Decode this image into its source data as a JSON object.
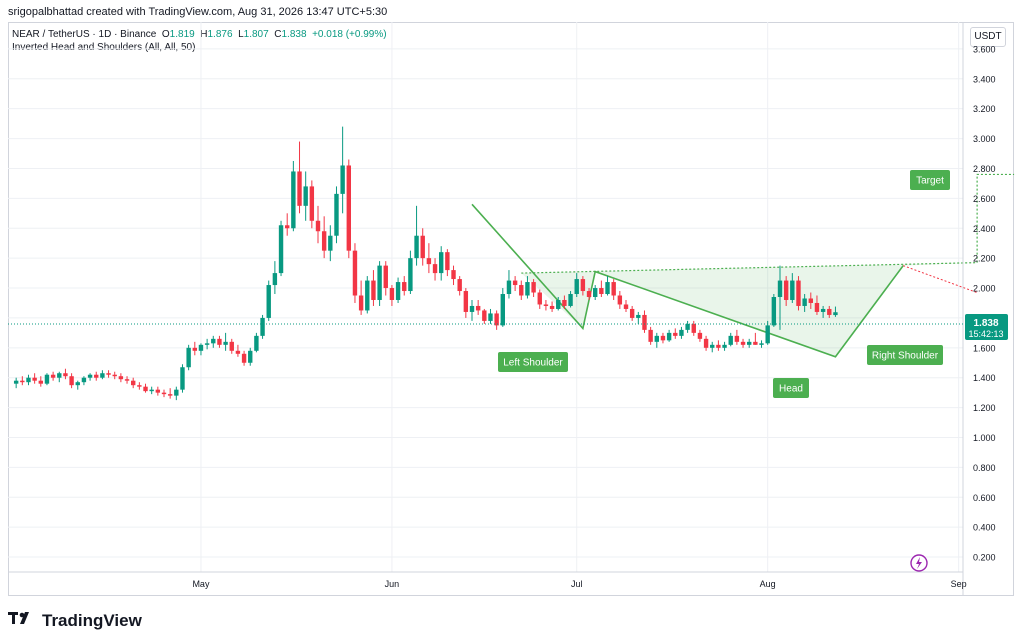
{
  "header": {
    "credit": "srigopalbhattad created with TradingView.com, Aug 31, 2026 13:47 UTC+5:30"
  },
  "legend": {
    "symbol": "NEAR / TetherUS · 1D · Binance",
    "o_label": "O",
    "o_value": "1.819",
    "h_label": "H",
    "h_value": "1.876",
    "l_label": "L",
    "l_value": "1.807",
    "c_label": "C",
    "c_value": "1.838",
    "change": "+0.018 (+0.99%)",
    "indicator": "Inverted Head and Shoulders (All, All, 50)"
  },
  "unit_button": "USDT",
  "price_tag": {
    "value": "1.838",
    "countdown": "15:42:13"
  },
  "footer": {
    "brand": "TradingView"
  },
  "colors": {
    "up": "#089981",
    "down": "#f23645",
    "pattern": "#4caf50",
    "label_bg": "#4caf50"
  },
  "chart_data": {
    "type": "candlestick",
    "y_ticks": [
      "3.600",
      "3.400",
      "3.200",
      "3.000",
      "2.800",
      "2.600",
      "2.400",
      "2.200",
      "2.000",
      "1.800",
      "1.600",
      "1.400",
      "1.200",
      "1.000",
      "0.800",
      "0.600",
      "0.400",
      "0.200"
    ],
    "ylim": [
      0.1,
      3.78
    ],
    "x_ticks": [
      {
        "label": "May",
        "day": 31
      },
      {
        "label": "Jun",
        "day": 62
      },
      {
        "label": "Jul",
        "day": 92
      },
      {
        "label": "Aug",
        "day": 123
      },
      {
        "label": "Sep",
        "day": 154
      }
    ],
    "xlim": [
      0,
      168
    ],
    "last_price": 1.838,
    "candles": [
      [
        1.36,
        1.4,
        1.33,
        1.38
      ],
      [
        1.38,
        1.41,
        1.35,
        1.37
      ],
      [
        1.37,
        1.42,
        1.35,
        1.4
      ],
      [
        1.4,
        1.43,
        1.36,
        1.38
      ],
      [
        1.38,
        1.41,
        1.34,
        1.36
      ],
      [
        1.36,
        1.43,
        1.35,
        1.42
      ],
      [
        1.42,
        1.44,
        1.38,
        1.4
      ],
      [
        1.4,
        1.44,
        1.37,
        1.43
      ],
      [
        1.43,
        1.46,
        1.39,
        1.41
      ],
      [
        1.41,
        1.43,
        1.33,
        1.35
      ],
      [
        1.35,
        1.38,
        1.32,
        1.37
      ],
      [
        1.37,
        1.41,
        1.35,
        1.4
      ],
      [
        1.4,
        1.43,
        1.38,
        1.42
      ],
      [
        1.42,
        1.44,
        1.38,
        1.4
      ],
      [
        1.4,
        1.45,
        1.39,
        1.43
      ],
      [
        1.43,
        1.45,
        1.4,
        1.42
      ],
      [
        1.42,
        1.44,
        1.39,
        1.41
      ],
      [
        1.41,
        1.43,
        1.37,
        1.39
      ],
      [
        1.39,
        1.41,
        1.36,
        1.38
      ],
      [
        1.38,
        1.4,
        1.33,
        1.35
      ],
      [
        1.35,
        1.37,
        1.32,
        1.34
      ],
      [
        1.34,
        1.36,
        1.3,
        1.31
      ],
      [
        1.31,
        1.34,
        1.29,
        1.32
      ],
      [
        1.32,
        1.34,
        1.28,
        1.3
      ],
      [
        1.3,
        1.32,
        1.27,
        1.29
      ],
      [
        1.29,
        1.33,
        1.26,
        1.28
      ],
      [
        1.28,
        1.34,
        1.25,
        1.32
      ],
      [
        1.32,
        1.49,
        1.3,
        1.47
      ],
      [
        1.47,
        1.62,
        1.45,
        1.6
      ],
      [
        1.6,
        1.64,
        1.55,
        1.58
      ],
      [
        1.58,
        1.63,
        1.55,
        1.62
      ],
      [
        1.62,
        1.66,
        1.59,
        1.63
      ],
      [
        1.63,
        1.68,
        1.6,
        1.66
      ],
      [
        1.66,
        1.68,
        1.6,
        1.62
      ],
      [
        1.62,
        1.7,
        1.58,
        1.64
      ],
      [
        1.64,
        1.66,
        1.56,
        1.58
      ],
      [
        1.58,
        1.62,
        1.54,
        1.56
      ],
      [
        1.56,
        1.58,
        1.48,
        1.5
      ],
      [
        1.5,
        1.6,
        1.48,
        1.58
      ],
      [
        1.58,
        1.7,
        1.57,
        1.68
      ],
      [
        1.68,
        1.82,
        1.66,
        1.8
      ],
      [
        1.8,
        2.05,
        1.78,
        2.02
      ],
      [
        2.02,
        2.18,
        1.96,
        2.1
      ],
      [
        2.1,
        2.45,
        2.08,
        2.42
      ],
      [
        2.42,
        2.5,
        2.35,
        2.4
      ],
      [
        2.4,
        2.85,
        2.38,
        2.78
      ],
      [
        2.78,
        2.98,
        2.5,
        2.55
      ],
      [
        2.55,
        2.78,
        2.45,
        2.68
      ],
      [
        2.68,
        2.72,
        2.4,
        2.45
      ],
      [
        2.45,
        2.55,
        2.3,
        2.38
      ],
      [
        2.38,
        2.48,
        2.2,
        2.25
      ],
      [
        2.25,
        2.42,
        2.18,
        2.35
      ],
      [
        2.35,
        2.68,
        2.3,
        2.63
      ],
      [
        2.63,
        3.08,
        2.5,
        2.82
      ],
      [
        2.82,
        2.86,
        2.2,
        2.25
      ],
      [
        2.25,
        2.3,
        1.9,
        1.95
      ],
      [
        1.95,
        2.05,
        1.82,
        1.85
      ],
      [
        1.85,
        2.08,
        1.83,
        2.05
      ],
      [
        2.05,
        2.12,
        1.88,
        1.92
      ],
      [
        1.92,
        2.18,
        1.88,
        2.15
      ],
      [
        2.15,
        2.18,
        1.95,
        2.0
      ],
      [
        2.0,
        2.02,
        1.88,
        1.92
      ],
      [
        1.92,
        2.07,
        1.9,
        2.04
      ],
      [
        2.04,
        2.08,
        1.95,
        1.98
      ],
      [
        1.98,
        2.25,
        1.96,
        2.2
      ],
      [
        2.2,
        2.55,
        2.15,
        2.35
      ],
      [
        2.35,
        2.4,
        2.15,
        2.2
      ],
      [
        2.2,
        2.3,
        2.1,
        2.16
      ],
      [
        2.16,
        2.2,
        2.05,
        2.1
      ],
      [
        2.1,
        2.28,
        2.05,
        2.24
      ],
      [
        2.24,
        2.26,
        2.08,
        2.12
      ],
      [
        2.12,
        2.15,
        2.02,
        2.06
      ],
      [
        2.06,
        2.08,
        1.95,
        1.98
      ],
      [
        1.98,
        2.0,
        1.8,
        1.84
      ],
      [
        1.84,
        1.92,
        1.78,
        1.88
      ],
      [
        1.88,
        1.92,
        1.82,
        1.85
      ],
      [
        1.85,
        1.86,
        1.76,
        1.78
      ],
      [
        1.78,
        1.86,
        1.76,
        1.83
      ],
      [
        1.83,
        1.85,
        1.72,
        1.75
      ],
      [
        1.75,
        2.0,
        1.74,
        1.96
      ],
      [
        1.96,
        2.12,
        1.93,
        2.05
      ],
      [
        2.05,
        2.08,
        1.98,
        2.02
      ],
      [
        2.02,
        2.05,
        1.92,
        1.95
      ],
      [
        1.95,
        2.08,
        1.93,
        2.04
      ],
      [
        2.04,
        2.06,
        1.94,
        1.97
      ],
      [
        1.97,
        1.99,
        1.86,
        1.89
      ],
      [
        1.89,
        1.92,
        1.85,
        1.88
      ],
      [
        1.88,
        1.91,
        1.84,
        1.86
      ],
      [
        1.86,
        1.94,
        1.85,
        1.92
      ],
      [
        1.92,
        1.95,
        1.86,
        1.88
      ],
      [
        1.88,
        1.98,
        1.87,
        1.96
      ],
      [
        1.96,
        2.1,
        1.94,
        2.06
      ],
      [
        2.06,
        2.08,
        1.95,
        1.98
      ],
      [
        1.98,
        2.0,
        1.92,
        1.94
      ],
      [
        1.94,
        2.02,
        1.92,
        2.0
      ],
      [
        2.0,
        2.05,
        1.94,
        1.96
      ],
      [
        1.96,
        2.08,
        1.95,
        2.04
      ],
      [
        2.04,
        2.06,
        1.92,
        1.95
      ],
      [
        1.95,
        1.98,
        1.86,
        1.89
      ],
      [
        1.89,
        1.92,
        1.84,
        1.86
      ],
      [
        1.86,
        1.88,
        1.78,
        1.8
      ],
      [
        1.8,
        1.84,
        1.76,
        1.82
      ],
      [
        1.82,
        1.85,
        1.7,
        1.72
      ],
      [
        1.72,
        1.74,
        1.62,
        1.64
      ],
      [
        1.64,
        1.7,
        1.6,
        1.68
      ],
      [
        1.68,
        1.7,
        1.63,
        1.65
      ],
      [
        1.65,
        1.72,
        1.64,
        1.7
      ],
      [
        1.7,
        1.73,
        1.66,
        1.68
      ],
      [
        1.68,
        1.74,
        1.66,
        1.72
      ],
      [
        1.72,
        1.78,
        1.7,
        1.76
      ],
      [
        1.76,
        1.78,
        1.68,
        1.7
      ],
      [
        1.7,
        1.72,
        1.64,
        1.66
      ],
      [
        1.66,
        1.68,
        1.58,
        1.6
      ],
      [
        1.6,
        1.64,
        1.57,
        1.62
      ],
      [
        1.62,
        1.65,
        1.58,
        1.6
      ],
      [
        1.6,
        1.64,
        1.58,
        1.62
      ],
      [
        1.62,
        1.7,
        1.61,
        1.68
      ],
      [
        1.68,
        1.72,
        1.62,
        1.64
      ],
      [
        1.64,
        1.66,
        1.6,
        1.62
      ],
      [
        1.62,
        1.66,
        1.6,
        1.64
      ],
      [
        1.64,
        1.7,
        1.62,
        1.62
      ],
      [
        1.62,
        1.65,
        1.6,
        1.63
      ],
      [
        1.63,
        1.78,
        1.62,
        1.75
      ],
      [
        1.75,
        1.96,
        1.74,
        1.94
      ],
      [
        1.94,
        2.15,
        1.72,
        2.05
      ],
      [
        2.05,
        2.08,
        1.88,
        1.92
      ],
      [
        1.92,
        2.1,
        1.9,
        2.05
      ],
      [
        2.05,
        2.08,
        1.85,
        1.88
      ],
      [
        1.88,
        1.96,
        1.84,
        1.93
      ],
      [
        1.93,
        1.97,
        1.86,
        1.9
      ],
      [
        1.9,
        1.95,
        1.82,
        1.84
      ],
      [
        1.84,
        1.88,
        1.8,
        1.86
      ],
      [
        1.86,
        1.88,
        1.8,
        1.82
      ],
      [
        1.819,
        1.876,
        1.807,
        1.838
      ]
    ],
    "pattern": {
      "name": "Inverted Head and Shoulders",
      "labels": [
        "Left Shoulder",
        "Head",
        "Right Shoulder",
        "Target"
      ],
      "points": [
        {
          "day": 75,
          "price": 2.56
        },
        {
          "day": 93,
          "price": 1.73
        },
        {
          "day": 95,
          "price": 2.11
        },
        {
          "day": 134,
          "price": 1.54
        },
        {
          "day": 145,
          "price": 2.15
        }
      ],
      "neckline": [
        {
          "day": 83,
          "price": 2.1
        },
        {
          "day": 157,
          "price": 2.17
        }
      ],
      "target": [
        {
          "day": 157,
          "price": 2.17
        },
        {
          "day": 157,
          "price": 2.76
        },
        {
          "day": 163,
          "price": 2.76
        }
      ]
    }
  }
}
